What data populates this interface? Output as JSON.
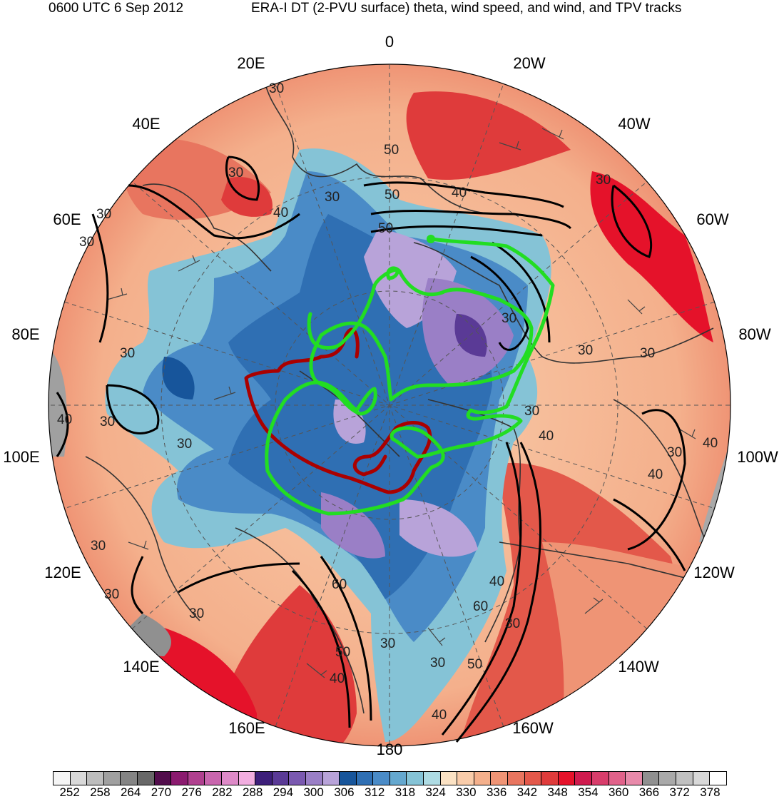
{
  "header": {
    "datetime": "0600 UTC 6 Sep 2012",
    "title": "ERA-I DT (2-PVU surface) theta, wind speed, and wind, and TPV tracks"
  },
  "map": {
    "projection": "north polar stereographic",
    "longitude_labels": [
      "0",
      "20W",
      "40W",
      "60W",
      "80W",
      "100W",
      "120W",
      "140W",
      "160W",
      "180",
      "160E",
      "140E",
      "120E",
      "100E",
      "80E",
      "60E",
      "40E",
      "20E"
    ],
    "wind_speed_contour_labels": [
      "30",
      "40",
      "50",
      "60"
    ],
    "colors": {
      "tpv_track_green": "#22dd22",
      "tpv_track_darkred": "#aa0000",
      "contour": "#000000",
      "coastline": "#333333"
    }
  },
  "colorbar": {
    "tick_labels": [
      "252",
      "258",
      "264",
      "270",
      "276",
      "282",
      "288",
      "294",
      "300",
      "306",
      "312",
      "318",
      "324",
      "330",
      "336",
      "342",
      "348",
      "354",
      "360",
      "366",
      "372",
      "378"
    ],
    "colors": [
      "#f5f5f5",
      "#d9d9d9",
      "#bdbdbd",
      "#a0a0a0",
      "#848484",
      "#686868",
      "#520d4c",
      "#8b1a6f",
      "#b0408f",
      "#c966ae",
      "#de8ac8",
      "#f2aee0",
      "#3d1f7a",
      "#5a3a96",
      "#7a59b0",
      "#9a7fc6",
      "#b8a3d9",
      "#17559b",
      "#2f6fb3",
      "#4a8bc7",
      "#65a8cf",
      "#85c3d6",
      "#aedbe3",
      "#fbe2c4",
      "#f9ccaa",
      "#f4b08c",
      "#ef9475",
      "#e8755f",
      "#e3584a",
      "#df3b3b",
      "#e5122a",
      "#cf1b4e",
      "#d83d6b",
      "#e1628a",
      "#e88aaa",
      "#909090",
      "#a9a9a9",
      "#c0c0c0",
      "#d8d8d8",
      "#ffffff"
    ]
  }
}
